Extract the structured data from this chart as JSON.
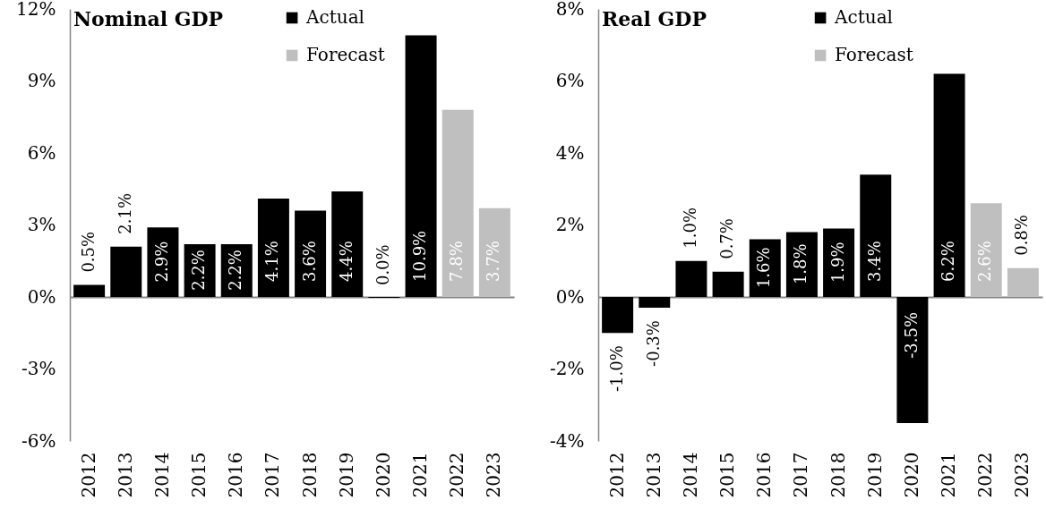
{
  "chart_data": [
    {
      "type": "bar",
      "title": "Nominal GDP",
      "categories": [
        "2012",
        "2013",
        "2014",
        "2015",
        "2016",
        "2017",
        "2018",
        "2019",
        "2020",
        "2021",
        "2022",
        "2023"
      ],
      "series": [
        {
          "name": "Actual",
          "color": "#000000",
          "values": [
            0.5,
            2.1,
            2.9,
            2.2,
            2.2,
            4.1,
            3.6,
            4.4,
            -0.04,
            10.9,
            null,
            null
          ],
          "value_labels": [
            "0.5%",
            "2.1%",
            "2.9%",
            "2.2%",
            "2.2%",
            "4.1%",
            "3.6%",
            "4.4%",
            "0.0%",
            "10.9%",
            null,
            null
          ]
        },
        {
          "name": "Forecast",
          "color": "#bfbfbf",
          "values": [
            null,
            null,
            null,
            null,
            null,
            null,
            null,
            null,
            null,
            null,
            7.8,
            3.7
          ],
          "value_labels": [
            null,
            null,
            null,
            null,
            null,
            null,
            null,
            null,
            null,
            null,
            "7.8%",
            "3.7%"
          ]
        }
      ],
      "ylim": [
        -6,
        12
      ],
      "yticks": [
        {
          "value": -6,
          "label": "-6%"
        },
        {
          "value": -3,
          "label": "-3%"
        },
        {
          "value": 0,
          "label": "0%"
        },
        {
          "value": 3,
          "label": "3%"
        },
        {
          "value": 6,
          "label": "6%"
        },
        {
          "value": 9,
          "label": "9%"
        },
        {
          "value": 12,
          "label": "12%"
        }
      ],
      "legend": "top right"
    },
    {
      "type": "bar",
      "title": "Real GDP",
      "categories": [
        "2012",
        "2013",
        "2014",
        "2015",
        "2016",
        "2017",
        "2018",
        "2019",
        "2020",
        "2021",
        "2022",
        "2023"
      ],
      "series": [
        {
          "name": "Actual",
          "color": "#000000",
          "values": [
            -1.0,
            -0.3,
            1.0,
            0.7,
            1.6,
            1.8,
            1.9,
            3.4,
            -3.5,
            6.2,
            null,
            null
          ],
          "value_labels": [
            "-1.0%",
            "-0.3%",
            "1.0%",
            "0.7%",
            "1.6%",
            "1.8%",
            "1.9%",
            "3.4%",
            "-3.5%",
            "6.2%",
            null,
            null
          ]
        },
        {
          "name": "Forecast",
          "color": "#bfbfbf",
          "values": [
            null,
            null,
            null,
            null,
            null,
            null,
            null,
            null,
            null,
            null,
            2.6,
            0.8
          ],
          "value_labels": [
            null,
            null,
            null,
            null,
            null,
            null,
            null,
            null,
            null,
            null,
            "2.6%",
            "0.8%"
          ]
        }
      ],
      "ylim": [
        -4,
        8
      ],
      "yticks": [
        {
          "value": -4,
          "label": "-4%"
        },
        {
          "value": -2,
          "label": "-2%"
        },
        {
          "value": 0,
          "label": "0%"
        },
        {
          "value": 2,
          "label": "2%"
        },
        {
          "value": 4,
          "label": "4%"
        },
        {
          "value": 6,
          "label": "6%"
        },
        {
          "value": 8,
          "label": "8%"
        }
      ],
      "legend": "top right"
    }
  ]
}
